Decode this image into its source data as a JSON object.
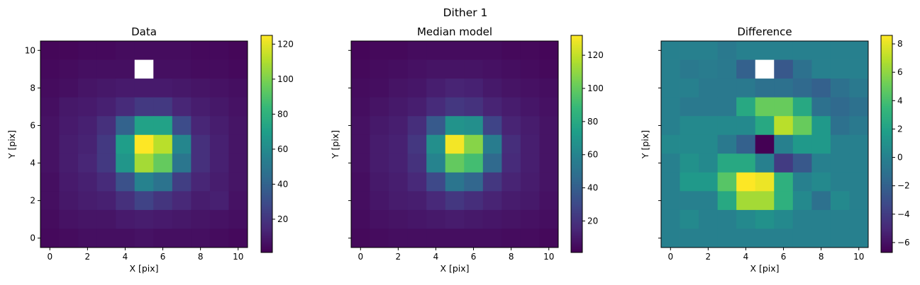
{
  "figure": {
    "suptitle": "Dither 1"
  },
  "colormap": [
    "#440154",
    "#482878",
    "#3e4989",
    "#31688e",
    "#26828e",
    "#1f9e89",
    "#35b779",
    "#6ece58",
    "#b5de2b",
    "#fde725"
  ],
  "chart_data": [
    {
      "type": "heatmap",
      "title": "Data",
      "xlabel": "X [pix]",
      "ylabel": "Y [pix]",
      "x_ticks": [
        0,
        2,
        4,
        6,
        8,
        10
      ],
      "y_ticks": [
        0,
        2,
        4,
        6,
        8,
        10
      ],
      "xlim": [
        -0.5,
        10.5
      ],
      "ylim": [
        -0.5,
        10.5
      ],
      "show_y_tick_labels": true,
      "colorbar": {
        "vmin": 1,
        "vmax": 125,
        "ticks": [
          20,
          40,
          60,
          80,
          100,
          120
        ]
      },
      "nan_cells": [
        [
          5,
          1
        ]
      ],
      "values": [
        [
          3,
          3,
          4,
          4,
          5,
          5,
          5,
          5,
          4,
          4,
          3
        ],
        [
          4,
          5,
          6,
          6,
          6,
          null,
          6,
          6,
          5,
          5,
          4
        ],
        [
          5,
          6,
          8,
          9,
          10,
          10,
          10,
          9,
          8,
          7,
          6
        ],
        [
          6,
          9,
          10,
          12,
          16,
          22,
          22,
          14,
          11,
          9,
          7
        ],
        [
          7,
          10,
          12,
          18,
          40,
          72,
          72,
          30,
          14,
          11,
          8
        ],
        [
          7,
          11,
          13,
          22,
          70,
          125,
          112,
          58,
          18,
          12,
          8
        ],
        [
          7,
          11,
          14,
          22,
          66,
          108,
          95,
          50,
          18,
          12,
          8
        ],
        [
          6,
          10,
          12,
          16,
          32,
          56,
          48,
          24,
          14,
          11,
          8
        ],
        [
          6,
          9,
          11,
          12,
          18,
          26,
          20,
          15,
          11,
          12,
          7
        ],
        [
          5,
          7,
          8,
          8,
          10,
          11,
          10,
          9,
          8,
          7,
          6
        ],
        [
          4,
          5,
          6,
          6,
          6,
          7,
          6,
          6,
          6,
          5,
          4
        ]
      ]
    },
    {
      "type": "heatmap",
      "title": "Median model",
      "xlabel": "X [pix]",
      "ylabel": "Y [pix]",
      "x_ticks": [
        0,
        2,
        4,
        6,
        8,
        10
      ],
      "y_ticks": [
        0,
        2,
        4,
        6,
        8,
        10
      ],
      "xlim": [
        -0.5,
        10.5
      ],
      "ylim": [
        -0.5,
        10.5
      ],
      "show_y_tick_labels": false,
      "colorbar": {
        "vmin": 1,
        "vmax": 132,
        "ticks": [
          20,
          40,
          60,
          80,
          100,
          120
        ]
      },
      "nan_cells": [],
      "values": [
        [
          3,
          4,
          4,
          5,
          5,
          5,
          5,
          5,
          4,
          4,
          3
        ],
        [
          4,
          5,
          6,
          7,
          8,
          8,
          8,
          7,
          6,
          5,
          4
        ],
        [
          5,
          6,
          8,
          9,
          12,
          14,
          13,
          10,
          8,
          7,
          6
        ],
        [
          6,
          8,
          10,
          12,
          17,
          22,
          20,
          14,
          11,
          9,
          7
        ],
        [
          7,
          10,
          12,
          18,
          38,
          68,
          66,
          28,
          14,
          11,
          8
        ],
        [
          7,
          11,
          13,
          22,
          66,
          130,
          108,
          56,
          18,
          12,
          8
        ],
        [
          7,
          11,
          13,
          20,
          60,
          100,
          92,
          46,
          17,
          12,
          8
        ],
        [
          6,
          10,
          12,
          16,
          30,
          52,
          44,
          22,
          14,
          11,
          8
        ],
        [
          6,
          9,
          11,
          12,
          16,
          22,
          18,
          14,
          11,
          10,
          7
        ],
        [
          5,
          7,
          8,
          9,
          10,
          11,
          10,
          9,
          8,
          7,
          6
        ],
        [
          4,
          5,
          6,
          6,
          6,
          6,
          6,
          6,
          5,
          5,
          4
        ]
      ]
    },
    {
      "type": "heatmap",
      "title": "Difference",
      "xlabel": "X [pix]",
      "ylabel": "Y [pix]",
      "x_ticks": [
        0,
        2,
        4,
        6,
        8,
        10
      ],
      "y_ticks": [
        0,
        2,
        4,
        6,
        8,
        10
      ],
      "xlim": [
        -0.5,
        10.5
      ],
      "ylim": [
        -0.5,
        10.5
      ],
      "show_y_tick_labels": false,
      "colorbar": {
        "vmin": -6.7,
        "vmax": 8.6,
        "ticks": [
          -6,
          -4,
          -2,
          0,
          2,
          4,
          6,
          8
        ]
      },
      "nan_cells": [
        [
          5,
          1
        ]
      ],
      "values": [
        [
          0,
          0,
          0,
          -0.5,
          0,
          0,
          0,
          0,
          0,
          0,
          0
        ],
        [
          0,
          -0.5,
          -0.3,
          -0.5,
          -2,
          null,
          -2.5,
          -1,
          0,
          0,
          0
        ],
        [
          0,
          0,
          -0.5,
          -0.5,
          -0.5,
          -1,
          -1,
          -1.5,
          -2,
          -1,
          -0.5
        ],
        [
          0,
          -0.5,
          -0.5,
          -0.5,
          2.5,
          5,
          5,
          2.5,
          -1,
          -1.5,
          -1
        ],
        [
          0,
          0.5,
          0.5,
          0.5,
          0.5,
          2.5,
          7,
          5,
          1.5,
          -1,
          -0.5
        ],
        [
          0.5,
          0.5,
          0.5,
          -0.5,
          -2,
          -6.7,
          0,
          1.5,
          1.5,
          0,
          0
        ],
        [
          0,
          1,
          0.5,
          2.5,
          2.5,
          0,
          -4,
          -2.5,
          0,
          0,
          0
        ],
        [
          0,
          1.5,
          1.5,
          4.5,
          8.6,
          8.2,
          3,
          0,
          0.5,
          0,
          0
        ],
        [
          0,
          0,
          0,
          2.5,
          6.5,
          6.5,
          3,
          0.5,
          -1,
          0.5,
          0
        ],
        [
          0,
          0.5,
          0,
          0,
          0.5,
          1,
          0.5,
          0,
          0,
          0,
          0
        ],
        [
          0,
          0,
          0,
          0,
          0,
          0,
          0,
          0,
          0,
          0,
          0
        ]
      ]
    }
  ]
}
